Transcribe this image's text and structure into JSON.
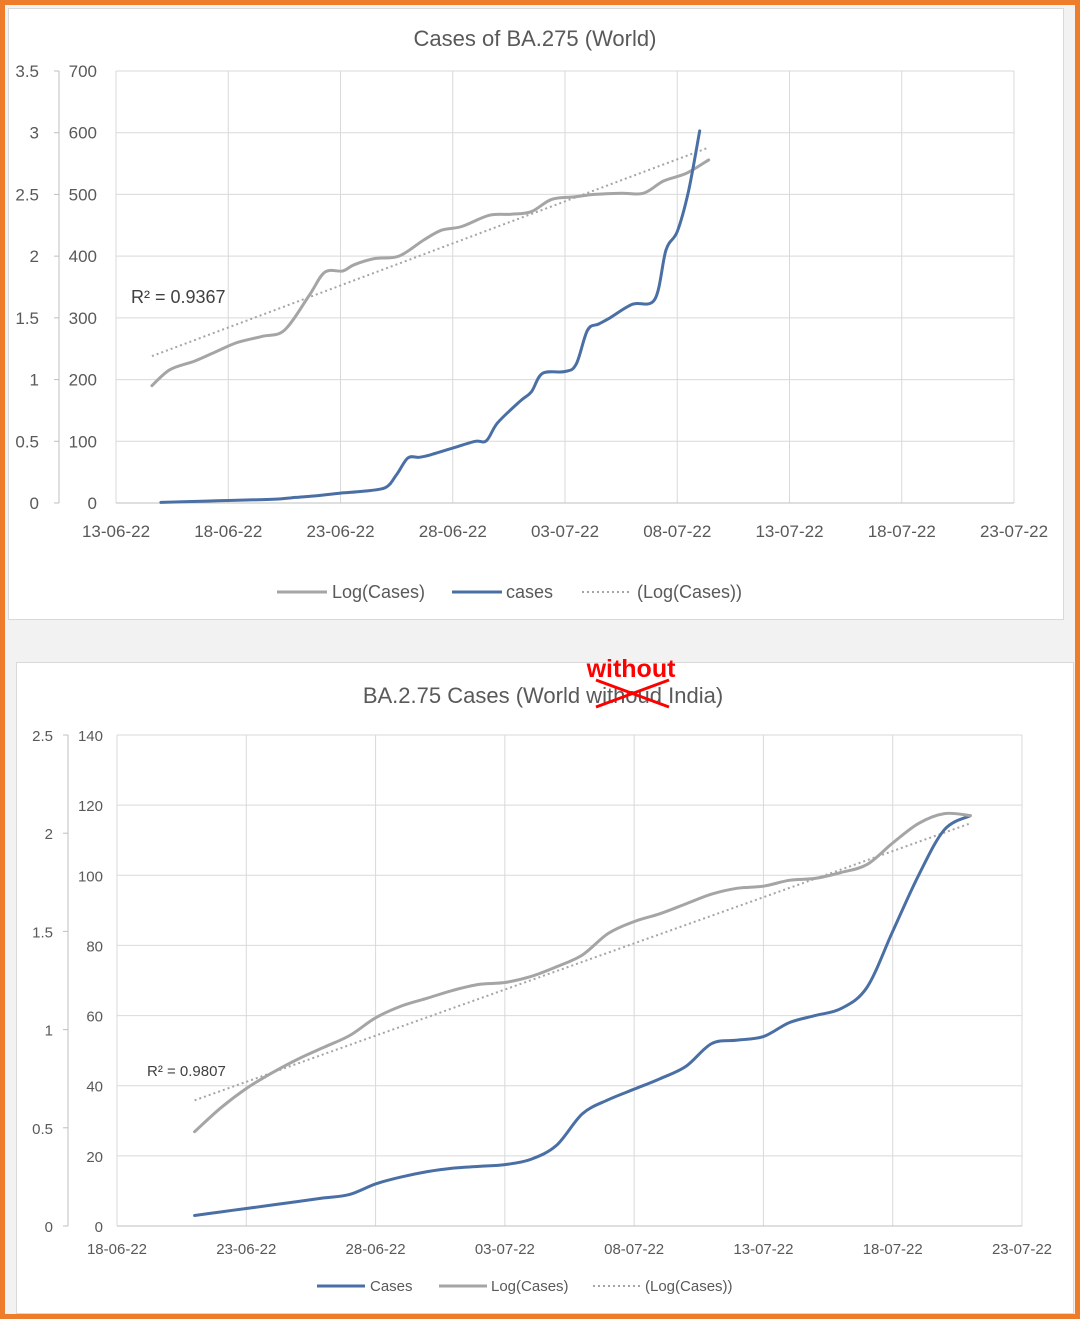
{
  "chart_data": [
    {
      "type": "line",
      "title": "Cases of BA.275 (World)",
      "x_ticks": [
        "13-06-22",
        "18-06-22",
        "23-06-22",
        "28-06-22",
        "03-07-22",
        "08-07-22",
        "13-07-22",
        "18-07-22",
        "23-07-22"
      ],
      "ylim_right": [
        0,
        700
      ],
      "y_ticks_right": [
        "0",
        "100",
        "200",
        "300",
        "400",
        "500",
        "600",
        "700"
      ],
      "ylim_left": [
        0,
        3.5
      ],
      "y_ticks_left": [
        "0",
        "0.5",
        "1",
        "1.5",
        "2",
        "2.5",
        "3",
        "3.5"
      ],
      "grid": true,
      "legend_position": "bottom",
      "legend": [
        "Log(Cases)",
        "cases",
        "(Log(Cases))"
      ],
      "r_squared_label": "R² = 0.9367",
      "trendline": {
        "x": [
          14.6,
          39.4
        ],
        "y": [
          1.19,
          2.88
        ]
      },
      "series": [
        {
          "name": "Log(Cases)",
          "axis": "left",
          "color": "#a5a5a5",
          "x": [
            14.6,
            15.4,
            16.5,
            17.5,
            18.4,
            19.5,
            20.5,
            21.6,
            22.3,
            23.1,
            23.6,
            24.5,
            25.6,
            26.7,
            27.5,
            28.4,
            29.6,
            30.6,
            31.5,
            32.4,
            33.4,
            34.3,
            35.5,
            36.5,
            37.4,
            38.4,
            39.4
          ],
          "y": [
            0.95,
            1.08,
            1.15,
            1.23,
            1.3,
            1.35,
            1.4,
            1.68,
            1.87,
            1.88,
            1.93,
            1.98,
            2.0,
            2.13,
            2.21,
            2.24,
            2.33,
            2.34,
            2.36,
            2.46,
            2.48,
            2.5,
            2.51,
            2.51,
            2.61,
            2.67,
            2.78
          ]
        },
        {
          "name": "cases",
          "axis": "right",
          "color": "#4a6fa5",
          "x": [
            15.0,
            16.0,
            17.0,
            18.0,
            19.0,
            20.0,
            21.0,
            22.0,
            23.0,
            24.0,
            25.0,
            25.5,
            26.0,
            26.5,
            27.0,
            28.0,
            29.0,
            29.5,
            30.0,
            31.0,
            31.5,
            32.0,
            33.0,
            33.5,
            34.0,
            34.5,
            35.0,
            36.0,
            37.0,
            37.5,
            38.0,
            38.5,
            39.0
          ],
          "y": [
            1,
            2,
            3,
            4,
            5,
            6,
            9,
            12,
            16,
            19,
            25,
            46,
            73,
            74,
            78,
            89,
            100,
            101,
            130,
            165,
            180,
            210,
            213,
            225,
            280,
            290,
            300,
            322,
            330,
            410,
            440,
            505,
            603
          ]
        }
      ]
    },
    {
      "type": "line",
      "title": "BA.2.75 Cases (World withoud India)",
      "annotation": "without",
      "x_ticks": [
        "18-06-22",
        "23-06-22",
        "28-06-22",
        "03-07-22",
        "08-07-22",
        "13-07-22",
        "18-07-22",
        "23-07-22"
      ],
      "ylim_right": [
        0,
        140
      ],
      "y_ticks_right": [
        "0",
        "20",
        "40",
        "60",
        "80",
        "100",
        "120",
        "140"
      ],
      "ylim_left": [
        0,
        2.5
      ],
      "y_ticks_left": [
        "0",
        "0.5",
        "1",
        "1.5",
        "2",
        "2.5"
      ],
      "grid": true,
      "legend_position": "bottom",
      "legend": [
        "Cases",
        "Log(Cases)",
        "(Log(Cases))"
      ],
      "r_squared_label": "R² = 0.9807",
      "trendline": {
        "x": [
          21,
          51
        ],
        "y": [
          0.64,
          2.05
        ]
      },
      "series": [
        {
          "name": "Cases",
          "axis": "right",
          "color": "#4a6fa5",
          "x": [
            21,
            22,
            23,
            24,
            25,
            26,
            27,
            28,
            29,
            30,
            31,
            32,
            33,
            34,
            35,
            36,
            37,
            38,
            39,
            40,
            41,
            42,
            43,
            44,
            45,
            46,
            47,
            48,
            49,
            50,
            51
          ],
          "y": [
            3,
            4,
            5,
            6,
            7,
            8,
            9,
            12,
            14,
            15.5,
            16.5,
            17,
            17.5,
            19,
            23,
            32,
            36,
            39,
            42,
            45.5,
            52,
            53,
            54,
            58,
            60,
            62,
            68,
            84,
            100,
            113,
            117
          ]
        },
        {
          "name": "Log(Cases)",
          "axis": "left",
          "color": "#a5a5a5",
          "x": [
            21,
            22,
            23,
            24,
            25,
            26,
            27,
            28,
            29,
            30,
            31,
            32,
            33,
            34,
            35,
            36,
            37,
            38,
            39,
            40,
            41,
            42,
            43,
            44,
            45,
            46,
            47,
            48,
            49,
            50,
            51
          ],
          "y": [
            0.48,
            0.6,
            0.7,
            0.78,
            0.85,
            0.91,
            0.97,
            1.06,
            1.12,
            1.16,
            1.2,
            1.23,
            1.24,
            1.27,
            1.32,
            1.38,
            1.49,
            1.55,
            1.59,
            1.64,
            1.69,
            1.72,
            1.73,
            1.76,
            1.77,
            1.8,
            1.84,
            1.95,
            2.05,
            2.1,
            2.09
          ]
        }
      ]
    }
  ]
}
